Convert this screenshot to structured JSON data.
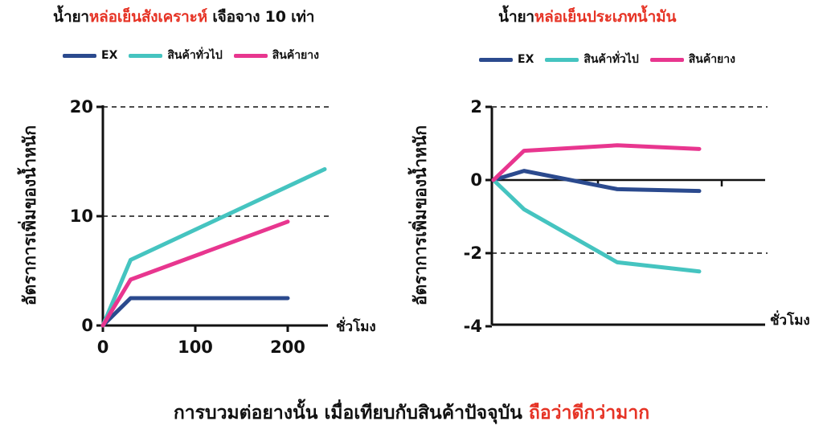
{
  "colors": {
    "highlight": "#e63325",
    "ex": "#2b4a8e",
    "general": "#45c4c0",
    "rubber": "#e8368f",
    "axis": "#111111"
  },
  "left_title": {
    "part1": "น้ำยา",
    "part2": "หล่อเย็นสังเคราะห์",
    "part3": " เจือจาง 10 เท่า"
  },
  "right_title": {
    "part1": "น้ำยา",
    "part2": "หล่อเย็นประเภทน้ำมัน"
  },
  "legend": {
    "ex": "EX",
    "general": "สินค้าทั่วไป",
    "rubber": "สินค้ายาง"
  },
  "footer": {
    "main": "การบวมต่อยางนั้น เมื่อเทียบกับสินค้าปัจจุบัน ",
    "highlight": "ถือว่าดีกว่ามาก"
  },
  "chart_data": [
    {
      "type": "line",
      "title": "น้ำยาหล่อเย็นสังเคราะห์ เจือจาง 10 เท่า",
      "ylabel": "อัตราการเพิ่มของน้ำหนัก",
      "xlabel": "ชั่วโมง",
      "xlim": [
        0,
        240
      ],
      "ylim": [
        0,
        20
      ],
      "xticks": [
        0,
        100,
        200
      ],
      "yticks": [
        0,
        10,
        20
      ],
      "dashed_gridlines_y": [
        10,
        20
      ],
      "series": [
        {
          "name": "EX",
          "x": [
            0,
            30,
            200
          ],
          "y": [
            0,
            2.5,
            2.5
          ]
        },
        {
          "name": "สินค้าทั่วไป",
          "x": [
            0,
            30,
            240
          ],
          "y": [
            0,
            6,
            14.3
          ]
        },
        {
          "name": "สินค้ายาง",
          "x": [
            0,
            30,
            200
          ],
          "y": [
            0,
            4.2,
            9.5
          ]
        }
      ]
    },
    {
      "type": "line",
      "title": "น้ำยาหล่อเย็นประเภทน้ำมัน",
      "ylabel": "อัตราการเพิ่มของน้ำหนัก",
      "xlabel": "ชั่วโมง",
      "ylim": [
        -4,
        2
      ],
      "yticks": [
        -4,
        -2,
        0,
        2
      ],
      "dashed_gridlines_y": [
        2,
        -2
      ],
      "series": [
        {
          "name": "EX",
          "x": [
            0,
            1,
            2,
            3
          ],
          "y": [
            0,
            0.25,
            -0.25,
            -0.3
          ]
        },
        {
          "name": "สินค้าทั่วไป",
          "x": [
            0,
            1,
            2,
            3
          ],
          "y": [
            0,
            -0.8,
            -2.25,
            -2.5
          ]
        },
        {
          "name": "สินค้ายาง",
          "x": [
            0,
            1,
            2,
            3
          ],
          "y": [
            0,
            0.8,
            0.95,
            0.85
          ]
        }
      ]
    }
  ]
}
